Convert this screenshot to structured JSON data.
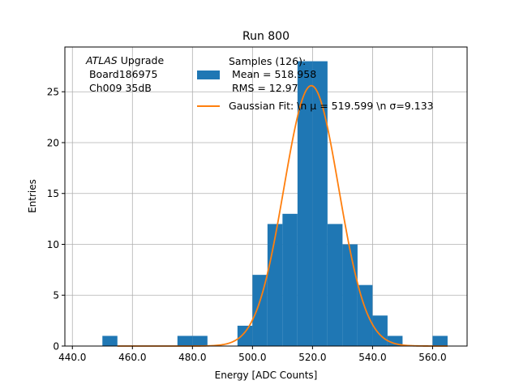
{
  "chart_data": {
    "type": "bar",
    "title": "Run 800",
    "xlabel": "Energy [ADC Counts]",
    "ylabel": "Entries",
    "xlim": [
      437.5,
      571.5
    ],
    "ylim": [
      0,
      29.4
    ],
    "xticks": [
      440,
      460,
      480,
      500,
      520,
      540,
      560
    ],
    "xtick_labels": [
      "440.0",
      "460.0",
      "480.0",
      "500.0",
      "520.0",
      "540.0",
      "560.0"
    ],
    "yticks": [
      0,
      5,
      10,
      15,
      20,
      25
    ],
    "ytick_labels": [
      "0",
      "5",
      "10",
      "15",
      "20",
      "25"
    ],
    "grid": true,
    "annotation": {
      "atlas_italic": "ATLAS",
      "line1_rest": " Upgrade",
      "line2": " Board186975",
      "line3": " Ch009 35dB"
    },
    "legend": {
      "placement": "top-right",
      "histogram_lines": [
        "Samples (126):",
        " Mean = 518.958",
        " RMS = 12.97"
      ],
      "fit_label": "Gaussian Fit: \\n μ = 519.599 \\n σ=9.133"
    },
    "histogram": {
      "color": "#1f77b4",
      "bin_width": 5,
      "bins": [
        {
          "x0": 450,
          "count": 1
        },
        {
          "x0": 475,
          "count": 1
        },
        {
          "x0": 480,
          "count": 1
        },
        {
          "x0": 495,
          "count": 2
        },
        {
          "x0": 500,
          "count": 7
        },
        {
          "x0": 505,
          "count": 12
        },
        {
          "x0": 510,
          "count": 13
        },
        {
          "x0": 515,
          "count": 28
        },
        {
          "x0": 520,
          "count": 28
        },
        {
          "x0": 525,
          "count": 12
        },
        {
          "x0": 530,
          "count": 10
        },
        {
          "x0": 535,
          "count": 6
        },
        {
          "x0": 540,
          "count": 3
        },
        {
          "x0": 545,
          "count": 1
        },
        {
          "x0": 560,
          "count": 1
        }
      ]
    },
    "gaussian_fit": {
      "color": "#ff7f0e",
      "mu": 519.599,
      "sigma": 9.133,
      "peak": 25.6,
      "x_range": [
        455,
        565
      ]
    }
  }
}
